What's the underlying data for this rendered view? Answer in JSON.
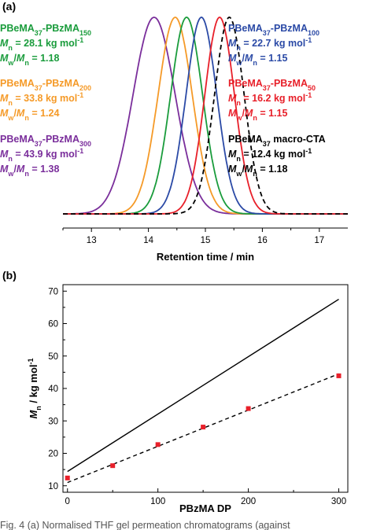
{
  "panel_a_label": "(a)",
  "panel_b_label": "(b)",
  "caption_fragment": "Fig. 4 (a) Normalised THF gel permeation chromatograms (against",
  "chart_data": [
    {
      "type": "line",
      "panel": "(a)",
      "xlabel": "Retention time / min",
      "ylabel": "",
      "xlim": [
        12.5,
        17.5
      ],
      "xticks": [
        13,
        14,
        15,
        16,
        17
      ],
      "grid": false,
      "series": [
        {
          "name": "PBeMA37-PBzMA300",
          "color": "#7a2e9b",
          "dash": "solid",
          "peak": 14.1,
          "sigma": 0.37
        },
        {
          "name": "PBeMA37-PBzMA200",
          "color": "#f59a28",
          "dash": "solid",
          "peak": 14.47,
          "sigma": 0.3
        },
        {
          "name": "PBeMA37-PBzMA150",
          "color": "#1a9c3c",
          "dash": "solid",
          "peak": 14.67,
          "sigma": 0.28
        },
        {
          "name": "PBeMA37-PBzMA100",
          "color": "#2b4aa6",
          "dash": "solid",
          "peak": 14.93,
          "sigma": 0.27
        },
        {
          "name": "PBeMA37-PBzMA50",
          "color": "#e8202a",
          "dash": "solid",
          "peak": 15.25,
          "sigma": 0.26
        },
        {
          "name": "PBeMA37 macro-CTA",
          "color": "#000000",
          "dash": "dashed",
          "peak": 15.42,
          "sigma": 0.26
        }
      ],
      "annotations": [
        {
          "id": "bzma150",
          "color": "#1a9c3c",
          "side": "left",
          "lines": [
            [
              {
                "t": "PBeMA"
              },
              {
                "t": "37",
                "sub": true
              },
              {
                "t": "-PBzMA"
              },
              {
                "t": "150",
                "sub": true
              }
            ],
            [
              {
                "t": "M",
                "i": true
              },
              {
                "t": "n",
                "sub": true
              },
              {
                "t": " = 28.1 kg mol"
              },
              {
                "t": "-1",
                "sup": true
              }
            ],
            [
              {
                "t": "M",
                "i": true
              },
              {
                "t": "w",
                "sub": true
              },
              {
                "t": "/"
              },
              {
                "t": "M",
                "i": true
              },
              {
                "t": "n",
                "sub": true
              },
              {
                "t": " = 1.18"
              }
            ]
          ]
        },
        {
          "id": "bzma200",
          "color": "#f59a28",
          "side": "left",
          "lines": [
            [
              {
                "t": "PBeMA"
              },
              {
                "t": "37",
                "sub": true
              },
              {
                "t": "-PBzMA"
              },
              {
                "t": "200",
                "sub": true
              }
            ],
            [
              {
                "t": "M",
                "i": true
              },
              {
                "t": "n",
                "sub": true
              },
              {
                "t": " = 33.8 kg mol"
              },
              {
                "t": "-1",
                "sup": true
              }
            ],
            [
              {
                "t": "M",
                "i": true
              },
              {
                "t": "w",
                "sub": true
              },
              {
                "t": "/"
              },
              {
                "t": "M",
                "i": true
              },
              {
                "t": "n",
                "sub": true
              },
              {
                "t": " = 1.24"
              }
            ]
          ]
        },
        {
          "id": "bzma300",
          "color": "#7a2e9b",
          "side": "left",
          "lines": [
            [
              {
                "t": "PBeMA"
              },
              {
                "t": "37",
                "sub": true
              },
              {
                "t": "-PBzMA"
              },
              {
                "t": "300",
                "sub": true
              }
            ],
            [
              {
                "t": "M",
                "i": true
              },
              {
                "t": "n",
                "sub": true
              },
              {
                "t": " = 43.9 kg mol"
              },
              {
                "t": "-1",
                "sup": true
              }
            ],
            [
              {
                "t": "M",
                "i": true
              },
              {
                "t": "w",
                "sub": true
              },
              {
                "t": "/"
              },
              {
                "t": "M",
                "i": true
              },
              {
                "t": "n",
                "sub": true
              },
              {
                "t": " = 1.38"
              }
            ]
          ]
        },
        {
          "id": "bzma100",
          "color": "#2b4aa6",
          "side": "right",
          "lines": [
            [
              {
                "t": "PBeMA"
              },
              {
                "t": "37",
                "sub": true
              },
              {
                "t": "-PBzMA"
              },
              {
                "t": "100",
                "sub": true
              }
            ],
            [
              {
                "t": "M",
                "i": true
              },
              {
                "t": "n",
                "sub": true
              },
              {
                "t": " = 22.7 kg mol"
              },
              {
                "t": "-1",
                "sup": true
              }
            ],
            [
              {
                "t": "M",
                "i": true
              },
              {
                "t": "w",
                "sub": true
              },
              {
                "t": "/"
              },
              {
                "t": "M",
                "i": true
              },
              {
                "t": "n",
                "sub": true
              },
              {
                "t": " = 1.15"
              }
            ]
          ]
        },
        {
          "id": "bzma50",
          "color": "#e8202a",
          "side": "right",
          "lines": [
            [
              {
                "t": "PBeMA"
              },
              {
                "t": "37",
                "sub": true
              },
              {
                "t": "-PBzMA"
              },
              {
                "t": "50",
                "sub": true
              }
            ],
            [
              {
                "t": "M",
                "i": true
              },
              {
                "t": "n",
                "sub": true
              },
              {
                "t": " = 16.2 kg mol"
              },
              {
                "t": "-1",
                "sup": true
              }
            ],
            [
              {
                "t": "M",
                "i": true
              },
              {
                "t": "w",
                "sub": true
              },
              {
                "t": "/"
              },
              {
                "t": "M",
                "i": true
              },
              {
                "t": "n",
                "sub": true
              },
              {
                "t": " = 1.15"
              }
            ]
          ]
        },
        {
          "id": "macrocta",
          "color": "#000000",
          "side": "right",
          "lines": [
            [
              {
                "t": "PBeMA"
              },
              {
                "t": "37",
                "sub": true
              },
              {
                "t": " macro-CTA"
              }
            ],
            [
              {
                "t": "M",
                "i": true
              },
              {
                "t": "n",
                "sub": true
              },
              {
                "t": " = 12.4 kg mol"
              },
              {
                "t": "-1",
                "sup": true
              }
            ],
            [
              {
                "t": "M",
                "i": true
              },
              {
                "t": "w",
                "sub": true
              },
              {
                "t": "/"
              },
              {
                "t": "M",
                "i": true
              },
              {
                "t": "n",
                "sub": true
              },
              {
                "t": " = 1.18"
              }
            ]
          ]
        }
      ]
    },
    {
      "type": "scatter",
      "panel": "(b)",
      "xlabel": "PBzMA DP",
      "ylabel_parts": [
        {
          "t": "M",
          "i": true
        },
        {
          "t": "n",
          "sub": true
        },
        {
          "t": " / kg mol"
        },
        {
          "t": "-1",
          "sup": true
        }
      ],
      "xlim": [
        -5,
        310
      ],
      "ylim": [
        8,
        72
      ],
      "xticks": [
        0,
        100,
        200,
        300
      ],
      "yticks": [
        10,
        20,
        30,
        40,
        50,
        60,
        70
      ],
      "grid": false,
      "points": {
        "color": "#e8202a",
        "x": [
          0,
          50,
          100,
          150,
          200,
          300
        ],
        "y": [
          12.4,
          16.2,
          22.7,
          28.1,
          33.8,
          43.9
        ]
      },
      "lines": [
        {
          "style": "solid",
          "color": "#000000",
          "x": [
            0,
            300
          ],
          "y": [
            14.4,
            67.5
          ]
        },
        {
          "style": "dashed",
          "color": "#000000",
          "x": [
            0,
            300
          ],
          "y": [
            11.0,
            44.5
          ]
        }
      ]
    }
  ]
}
